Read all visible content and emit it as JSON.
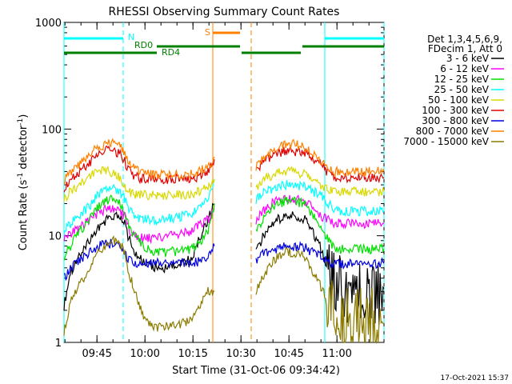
{
  "chart_data": {
    "type": "line",
    "title": "RHESSI Observing Summary Count Rates",
    "xlabel": "Start Time (31-Oct-06 09:34:42)",
    "ylabel_main": "Count Rate (s",
    "ylabel_sup1": "-1",
    "ylabel_mid": " detector",
    "ylabel_sup2": "-1",
    "ylabel_end": ")",
    "y_scale": "log",
    "ylim": [
      1,
      1000
    ],
    "y_ticks": [
      {
        "value": 1,
        "label": "1"
      },
      {
        "value": 10,
        "label": "10"
      },
      {
        "value": 100,
        "label": "100"
      },
      {
        "value": 1000,
        "label": "1000"
      }
    ],
    "xlim_minutes": [
      0,
      100
    ],
    "x_ticks": [
      {
        "minute": 10.3,
        "label": "09:45"
      },
      {
        "minute": 25.3,
        "label": "10:00"
      },
      {
        "minute": 40.3,
        "label": "10:15"
      },
      {
        "minute": 55.3,
        "label": "10:30"
      },
      {
        "minute": 70.3,
        "label": "10:45"
      },
      {
        "minute": 85.3,
        "label": "11:00"
      }
    ],
    "grid": false,
    "legend_placement": "right",
    "legend": {
      "header_1": "Det 1,3,4,5,6,9,",
      "header_2": "FDecim 1, Att 0",
      "entries": [
        {
          "label": "3 - 6 keV",
          "color": "#000000"
        },
        {
          "label": "6 - 12 keV",
          "color": "#ff00ff"
        },
        {
          "label": "12 - 25 keV",
          "color": "#00e000"
        },
        {
          "label": "25 - 50 keV",
          "color": "#00ffff"
        },
        {
          "label": "50 - 100 keV",
          "color": "#d8d800"
        },
        {
          "label": "100 - 300 keV",
          "color": "#e00000"
        },
        {
          "label": "300 - 800 keV",
          "color": "#0000e0"
        },
        {
          "label": "800 - 7000 keV",
          "color": "#ff8000"
        },
        {
          "label": "7000 - 15000 keV",
          "color": "#8b7b00"
        }
      ]
    },
    "series": [
      {
        "name": "3 - 6 keV",
        "color": "#000000",
        "x": [
          0,
          2,
          5,
          8,
          11,
          14,
          17,
          19,
          20,
          22,
          24,
          26,
          28,
          32,
          36,
          40,
          42,
          45,
          47,
          58,
          60,
          63,
          66,
          69,
          72,
          75,
          77,
          80,
          82,
          84,
          85,
          87,
          90,
          93,
          96,
          100
        ],
        "y": [
          2.2,
          4.5,
          6.5,
          9,
          12,
          15,
          15,
          13,
          10,
          7,
          6,
          5.5,
          5,
          5,
          5.5,
          6,
          9,
          14,
          20,
          null,
          7,
          11,
          14,
          15,
          15.5,
          14.5,
          12,
          8,
          5,
          3.5,
          3.2,
          3.2,
          3.2,
          3.2,
          3.2,
          3.2
        ]
      },
      {
        "name": "6 - 12 keV",
        "color": "#ff00ff",
        "x": [
          0,
          2,
          5,
          8,
          11,
          14,
          17,
          19,
          20,
          22,
          24,
          26,
          28,
          32,
          36,
          40,
          42,
          45,
          47,
          58,
          60,
          63,
          66,
          69,
          72,
          75,
          77,
          80,
          82,
          84,
          85,
          87,
          90,
          93,
          96,
          100
        ],
        "y": [
          9.5,
          10.5,
          12,
          14,
          16.5,
          18,
          17,
          15,
          12,
          10,
          9.5,
          9.5,
          9.5,
          10,
          10.5,
          11,
          12.5,
          14,
          18,
          null,
          14,
          18,
          21,
          22,
          22,
          21,
          19,
          16,
          14,
          13.5,
          13,
          13,
          13,
          13,
          13,
          13
        ]
      },
      {
        "name": "12 - 25 keV",
        "color": "#00e000",
        "x": [
          0,
          2,
          5,
          8,
          11,
          14,
          17,
          19,
          20,
          22,
          24,
          26,
          28,
          32,
          36,
          40,
          42,
          45,
          47,
          58,
          60,
          63,
          66,
          69,
          72,
          75,
          77,
          80,
          82,
          84,
          85,
          87,
          90,
          93,
          96,
          100
        ],
        "y": [
          6.5,
          8,
          11,
          14,
          19,
          22,
          21,
          17,
          13,
          10,
          8.5,
          7.5,
          7,
          7,
          7.2,
          7.5,
          8.5,
          11,
          20,
          null,
          11,
          16,
          19,
          21,
          21,
          20,
          17,
          13,
          10,
          8,
          7.5,
          7.5,
          7.5,
          7.5,
          7.5,
          7.5
        ]
      },
      {
        "name": "25 - 50 keV",
        "color": "#00ffff",
        "x": [
          0,
          2,
          5,
          8,
          11,
          14,
          17,
          19,
          20,
          22,
          24,
          26,
          28,
          32,
          36,
          40,
          42,
          45,
          47,
          58,
          60,
          63,
          66,
          69,
          72,
          75,
          77,
          80,
          82,
          84,
          85,
          87,
          90,
          93,
          96,
          100
        ],
        "y": [
          11,
          13,
          16,
          19,
          25,
          28,
          27,
          22,
          18,
          15,
          14.5,
          14,
          14,
          14.5,
          15,
          16,
          18,
          22,
          32,
          null,
          22,
          26,
          28,
          30,
          30,
          29,
          27,
          24,
          21,
          18,
          17,
          17,
          17,
          17,
          17,
          17
        ]
      },
      {
        "name": "50 - 100 keV",
        "color": "#d8d800",
        "x": [
          0,
          2,
          5,
          8,
          11,
          14,
          17,
          19,
          20,
          22,
          24,
          26,
          28,
          32,
          36,
          40,
          42,
          45,
          47,
          58,
          60,
          63,
          66,
          69,
          72,
          75,
          77,
          80,
          82,
          84,
          85,
          87,
          90,
          93,
          96,
          100
        ],
        "y": [
          22,
          26,
          30,
          36,
          42,
          40,
          36,
          30,
          26,
          24,
          24,
          24,
          24,
          24,
          24,
          25,
          26,
          28,
          34,
          null,
          28,
          34,
          38,
          40,
          40,
          38,
          34,
          30,
          27,
          26,
          26,
          26,
          26,
          26,
          26,
          26
        ]
      },
      {
        "name": "100 - 300 keV",
        "color": "#e00000",
        "x": [
          0,
          2,
          5,
          8,
          11,
          14,
          17,
          19,
          20,
          22,
          24,
          26,
          28,
          32,
          36,
          40,
          42,
          45,
          47,
          58,
          60,
          63,
          66,
          69,
          72,
          75,
          77,
          80,
          82,
          84,
          85,
          87,
          90,
          93,
          96,
          100
        ],
        "y": [
          28,
          33,
          40,
          48,
          58,
          64,
          60,
          50,
          42,
          36,
          34,
          34,
          34,
          34,
          34,
          34,
          36,
          40,
          52,
          null,
          42,
          52,
          58,
          62,
          62,
          60,
          56,
          48,
          40,
          36,
          35,
          35,
          35,
          35,
          35,
          35
        ]
      },
      {
        "name": "300 - 800 keV",
        "color": "#0000e0",
        "x": [
          0,
          2,
          5,
          8,
          11,
          14,
          17,
          19,
          20,
          22,
          24,
          26,
          28,
          32,
          36,
          40,
          42,
          45,
          47,
          58,
          60,
          63,
          66,
          69,
          72,
          75,
          77,
          80,
          82,
          84,
          85,
          87,
          90,
          93,
          96,
          100
        ],
        "y": [
          4,
          5,
          6,
          7,
          8,
          8.5,
          8,
          7,
          6,
          5.5,
          5.5,
          5.5,
          5.5,
          5.5,
          5.5,
          5.5,
          5.7,
          6,
          8,
          null,
          6,
          7,
          7.5,
          8,
          8,
          7.8,
          7.2,
          6.5,
          6,
          5.5,
          5.5,
          5.5,
          5.5,
          5.5,
          5.5,
          5.5
        ]
      },
      {
        "name": "800 - 7000 keV",
        "color": "#ff8000",
        "x": [
          0,
          2,
          5,
          8,
          11,
          14,
          17,
          19,
          20,
          22,
          24,
          26,
          28,
          32,
          36,
          40,
          42,
          45,
          47,
          58,
          60,
          63,
          66,
          69,
          72,
          75,
          77,
          80,
          82,
          84,
          85,
          87,
          90,
          93,
          96,
          100
        ],
        "y": [
          33,
          40,
          48,
          58,
          68,
          75,
          72,
          62,
          50,
          42,
          39,
          38,
          37,
          37,
          37,
          38,
          40,
          44,
          55,
          null,
          44,
          55,
          64,
          70,
          72,
          70,
          62,
          52,
          44,
          40,
          40,
          40,
          40,
          40,
          40,
          40
        ]
      },
      {
        "name": "7000 - 15000 keV",
        "color": "#8b7b00",
        "x": [
          0,
          2,
          5,
          8,
          11,
          14,
          17,
          19,
          20,
          22,
          24,
          26,
          28,
          32,
          36,
          40,
          42,
          45,
          47,
          58,
          60,
          63,
          66,
          69,
          72,
          75,
          77,
          80,
          82,
          84,
          85,
          87,
          90,
          93,
          96,
          100
        ],
        "y": [
          1.2,
          2.5,
          3.5,
          5,
          7,
          9,
          9,
          7,
          5,
          3,
          2,
          1.5,
          1.4,
          1.4,
          1.5,
          1.6,
          2,
          3,
          3,
          null,
          3,
          4.5,
          6,
          7,
          7,
          6.5,
          5,
          3.5,
          2.5,
          1.6,
          1.5,
          1.5,
          1.5,
          1.5,
          1.5,
          1.5
        ]
      }
    ],
    "annotations": [
      {
        "text": "S",
        "color": "#ff8000"
      },
      {
        "text": "N",
        "color": "#00ffff"
      },
      {
        "text": "RD0",
        "color": "#008000"
      },
      {
        "text": "RD4",
        "color": "#008000"
      }
    ],
    "markers": [
      {
        "minute": 0,
        "color": "#00ffff",
        "style": "solid"
      },
      {
        "minute": 18.5,
        "color": "#00ffff",
        "style": "dashed"
      },
      {
        "minute": 46.5,
        "color": "#ff8000",
        "style": "solid"
      },
      {
        "minute": 58.5,
        "color": "#ff8000",
        "style": "dashed"
      },
      {
        "minute": 81.5,
        "color": "#00ffff",
        "style": "solid"
      },
      {
        "minute": 100,
        "color": "#00ffff",
        "style": "dashed"
      }
    ],
    "footer_date": "17-Oct-2021 15:37"
  }
}
